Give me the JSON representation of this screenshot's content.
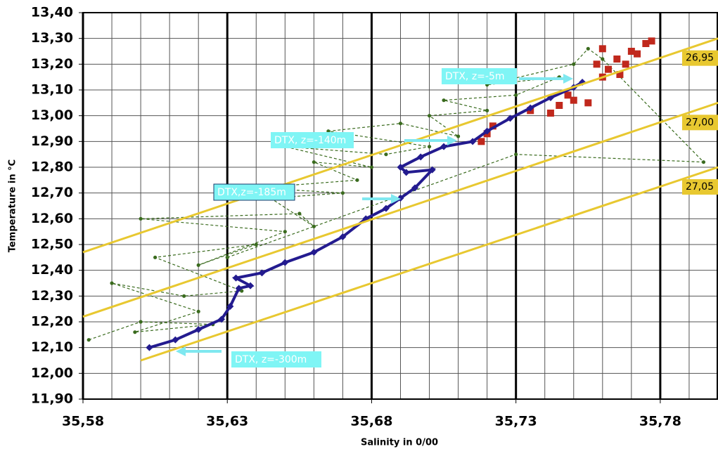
{
  "chart_data": {
    "type": "ts-diagram",
    "x_label": "Salinity in 0/00",
    "y_label": "Temperature in °C",
    "xlim": [
      35.58,
      35.8
    ],
    "ylim": [
      11.9,
      13.4
    ],
    "xticks": [
      {
        "value": 35.58,
        "label": "35,58"
      },
      {
        "value": 35.63,
        "label": "35,63"
      },
      {
        "value": 35.68,
        "label": "35,68"
      },
      {
        "value": 35.73,
        "label": "35,73"
      },
      {
        "value": 35.78,
        "label": "35,78"
      }
    ],
    "yticks": [
      {
        "value": 11.9,
        "label": "11,90"
      },
      {
        "value": 12.0,
        "label": "12,00"
      },
      {
        "value": 12.1,
        "label": "12,10"
      },
      {
        "value": 12.2,
        "label": "12,20"
      },
      {
        "value": 12.3,
        "label": "12,30"
      },
      {
        "value": 12.4,
        "label": "12,40"
      },
      {
        "value": 12.5,
        "label": "12,50"
      },
      {
        "value": 12.6,
        "label": "12,60"
      },
      {
        "value": 12.7,
        "label": "12,70"
      },
      {
        "value": 12.8,
        "label": "12,80"
      },
      {
        "value": 12.9,
        "label": "12,90"
      },
      {
        "value": 13.0,
        "label": "13,00"
      },
      {
        "value": 13.1,
        "label": "13,10"
      },
      {
        "value": 13.2,
        "label": "13,20"
      },
      {
        "value": 13.3,
        "label": "13,30"
      },
      {
        "value": 13.4,
        "label": "13,40"
      }
    ],
    "grid": true,
    "series": [
      {
        "color": "#3a6b1e",
        "line": "dashed",
        "marker": "circle",
        "x": [
          35.582,
          35.6,
          35.625,
          35.598,
          35.62,
          35.59,
          35.615,
          35.635,
          35.605,
          35.64,
          35.62,
          35.65,
          35.6,
          35.655,
          35.66,
          35.645,
          35.67,
          35.64,
          35.675,
          35.66,
          35.68,
          35.65,
          35.685,
          35.7,
          35.665,
          35.69,
          35.71,
          35.7,
          35.72,
          35.705,
          35.73,
          35.745,
          35.72,
          35.75,
          35.755,
          35.76,
          35.795,
          35.73,
          35.63
        ],
        "values": [
          12.13,
          12.2,
          12.19,
          12.16,
          12.24,
          12.35,
          12.3,
          12.32,
          12.45,
          12.5,
          12.42,
          12.55,
          12.6,
          12.62,
          12.57,
          12.68,
          12.7,
          12.72,
          12.75,
          12.82,
          12.8,
          12.88,
          12.85,
          12.88,
          12.94,
          12.97,
          12.92,
          13.0,
          13.02,
          13.06,
          13.08,
          13.15,
          13.12,
          13.2,
          13.26,
          13.22,
          12.82,
          12.85,
          12.45
        ]
      },
      {
        "color": "#c0281c",
        "line": "none",
        "marker": "square",
        "x": [
          35.718,
          35.72,
          35.722,
          35.735,
          35.742,
          35.745,
          35.75,
          35.748,
          35.755,
          35.76,
          35.758,
          35.762,
          35.765,
          35.768,
          35.77,
          35.772,
          35.775,
          35.777,
          35.76,
          35.766
        ],
        "values": [
          12.9,
          12.93,
          12.96,
          13.02,
          13.01,
          13.04,
          13.06,
          13.08,
          13.05,
          13.15,
          13.2,
          13.18,
          13.22,
          13.2,
          13.25,
          13.24,
          13.28,
          13.29,
          13.26,
          13.16
        ]
      },
      {
        "color": "#231b8f",
        "line": "solid",
        "marker": "diamond",
        "x": [
          35.603,
          35.612,
          35.62,
          35.628,
          35.631,
          35.634,
          35.638,
          35.633,
          35.642,
          35.65,
          35.66,
          35.67,
          35.678,
          35.685,
          35.69,
          35.695,
          35.701,
          35.692,
          35.69,
          35.697,
          35.705,
          35.715,
          35.72,
          35.728,
          35.735,
          35.742,
          35.75,
          35.753
        ],
        "values": [
          12.1,
          12.13,
          12.17,
          12.21,
          12.26,
          12.33,
          12.34,
          12.37,
          12.39,
          12.43,
          12.47,
          12.53,
          12.6,
          12.64,
          12.68,
          12.72,
          12.79,
          12.78,
          12.8,
          12.84,
          12.88,
          12.9,
          12.94,
          12.99,
          13.03,
          13.07,
          13.11,
          13.13
        ]
      },
      {
        "name": "26,95",
        "color": "#e8c830",
        "line": "solid",
        "marker": "none",
        "x": [
          35.58,
          35.8
        ],
        "values": [
          12.47,
          13.3
        ]
      },
      {
        "name": "27,00",
        "color": "#e8c830",
        "line": "solid",
        "marker": "none",
        "x": [
          35.58,
          35.8
        ],
        "values": [
          12.22,
          13.05
        ]
      },
      {
        "name": "27,05",
        "color": "#e8c830",
        "line": "solid",
        "marker": "none",
        "x": [
          35.6,
          35.8
        ],
        "values": [
          12.05,
          12.8
        ]
      }
    ],
    "annotations": [
      {
        "text": "DTX, z=-5m"
      },
      {
        "text": "DTX, z=-140m"
      },
      {
        "text": "DTX,z=-185m"
      },
      {
        "text": "DTX, z=-300m"
      }
    ]
  }
}
